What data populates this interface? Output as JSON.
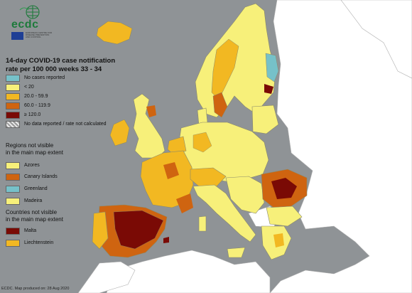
{
  "logo": {
    "wordmark": "ecdc",
    "icon": "globe-grid-icon",
    "subtitle": "EUROPEAN CENTRE FOR DISEASE PREVENTION AND CONTROL"
  },
  "map_title_line1": "14-day COVID-19 case notification",
  "map_title_line2": "rate per 100 000 weeks 33 - 34",
  "legend": [
    {
      "label": "No cases reported",
      "color": "#76c1c9"
    },
    {
      "label": "< 20",
      "color": "#f7f07a"
    },
    {
      "label": "20.0 - 59.9",
      "color": "#f2b822"
    },
    {
      "label": "60.0 - 119.9",
      "color": "#cf6410"
    },
    {
      "label": "≥ 120.0",
      "color": "#7a0a05"
    },
    {
      "label": "No data reported / rate not calculated",
      "color": "hatched"
    }
  ],
  "regions_heading_line1": "Regions not visible",
  "regions_heading_line2": "in the main map extent",
  "regions": [
    {
      "label": "Azores",
      "color": "#f7f07a"
    },
    {
      "label": "Canary Islands",
      "color": "#cf6410"
    },
    {
      "label": "Greenland",
      "color": "#76c1c9"
    },
    {
      "label": "Madeira",
      "color": "#f7f07a"
    }
  ],
  "countries_heading_line1": "Countries not visible",
  "countries_heading_line2": "in the main map extent",
  "countries": [
    {
      "label": "Malta",
      "color": "#7a0a05"
    },
    {
      "label": "Liechtenstein",
      "color": "#f2b822"
    }
  ],
  "footer": "ECDC. Map produced on: 28 Aug 2020",
  "colors": {
    "sea": "#8f9396",
    "non_eu_land": "#ffffff",
    "border": "#8a8a6a"
  }
}
